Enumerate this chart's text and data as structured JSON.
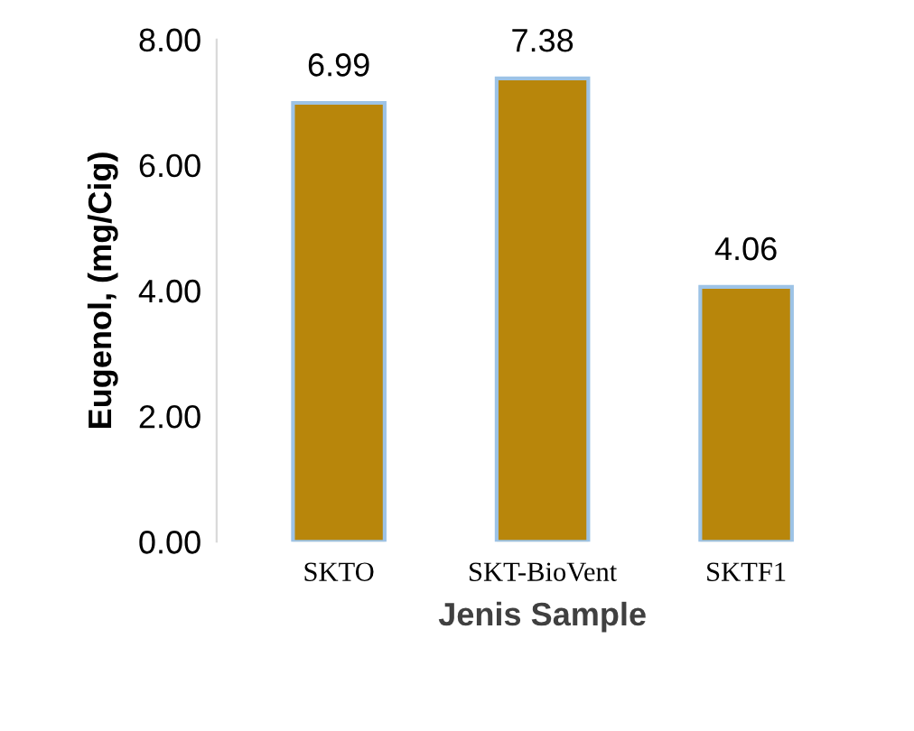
{
  "chart_data": {
    "type": "bar",
    "xlabel": "Jenis Sample",
    "ylabel": "Eugenol, (mg/Cig)",
    "categories": [
      "SKTO",
      "SKT-BioVent",
      "SKTF1"
    ],
    "values": [
      6.99,
      7.38,
      4.06
    ],
    "color": "#b8860b",
    "value_labels": [
      "6.99",
      "7.38",
      "4.06"
    ],
    "ylim": [
      0,
      8
    ],
    "yticks": [
      {
        "value": 0,
        "label": "0.00"
      },
      {
        "value": 2,
        "label": "2.00"
      },
      {
        "value": 4,
        "label": "4.00"
      },
      {
        "value": 6,
        "label": "6.00"
      },
      {
        "value": 8,
        "label": "8.00"
      }
    ],
    "grid": false,
    "legend": false
  }
}
